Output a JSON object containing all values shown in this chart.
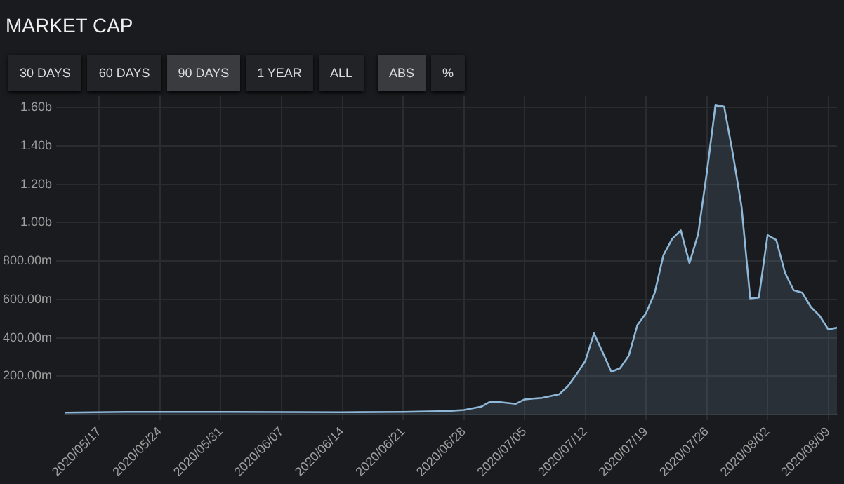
{
  "chart_data": {
    "type": "area",
    "title": "MARKET CAP",
    "annotations": [
      "30 DAYS",
      "60 DAYS",
      "90 DAYS",
      "1 YEAR",
      "ALL",
      "ABS",
      "%"
    ],
    "x": [
      "2020-05-13",
      "2020-05-20",
      "2020-06-01",
      "2020-06-14",
      "2020-06-21",
      "2020-06-26",
      "2020-06-28",
      "2020-06-30",
      "2020-07-01",
      "2020-07-02",
      "2020-07-04",
      "2020-07-05",
      "2020-07-06",
      "2020-07-07",
      "2020-07-09",
      "2020-07-10",
      "2020-07-11",
      "2020-07-12",
      "2020-07-13",
      "2020-07-14",
      "2020-07-15",
      "2020-07-16",
      "2020-07-17",
      "2020-07-18",
      "2020-07-19",
      "2020-07-20",
      "2020-07-21",
      "2020-07-22",
      "2020-07-23",
      "2020-07-24",
      "2020-07-25",
      "2020-07-26",
      "2020-07-27",
      "2020-07-28",
      "2020-07-29",
      "2020-07-30",
      "2020-07-31",
      "2020-08-01",
      "2020-08-02",
      "2020-08-03",
      "2020-08-04",
      "2020-08-05",
      "2020-08-06",
      "2020-08-07",
      "2020-08-08",
      "2020-08-09",
      "2020-08-10"
    ],
    "series": [
      {
        "color": "#8fb8d8",
        "values": [
          10000000,
          14000000,
          14000000,
          12000000,
          14000000,
          18000000,
          24000000,
          41000000,
          66000000,
          66000000,
          56000000,
          79000000,
          83000000,
          87000000,
          106000000,
          148000000,
          211000000,
          279000000,
          423000000,
          324000000,
          223000000,
          241000000,
          306000000,
          466000000,
          528000000,
          635000000,
          830000000,
          915000000,
          960000000,
          790000000,
          940000000,
          1260000000,
          1614000000,
          1604000000,
          1359000000,
          1085000000,
          605000000,
          610000000,
          935000000,
          910000000,
          740000000,
          648000000,
          635000000,
          560000000,
          515000000,
          443000000,
          453000000
        ]
      }
    ],
    "xlim": [
      "2020-05-13",
      "2020-08-10"
    ],
    "xticks": [
      {
        "value": "2020-05-17",
        "label": "2020/05/17"
      },
      {
        "value": "2020-05-24",
        "label": "2020/05/24"
      },
      {
        "value": "2020-05-31",
        "label": "2020/05/31"
      },
      {
        "value": "2020-06-07",
        "label": "2020/06/07"
      },
      {
        "value": "2020-06-14",
        "label": "2020/06/14"
      },
      {
        "value": "2020-06-21",
        "label": "2020/06/21"
      },
      {
        "value": "2020-06-28",
        "label": "2020/06/28"
      },
      {
        "value": "2020-07-05",
        "label": "2020/07/05"
      },
      {
        "value": "2020-07-12",
        "label": "2020/07/12"
      },
      {
        "value": "2020-07-19",
        "label": "2020/07/19"
      },
      {
        "value": "2020-07-26",
        "label": "2020/07/26"
      },
      {
        "value": "2020-08-02",
        "label": "2020/08/02"
      },
      {
        "value": "2020-08-09",
        "label": "2020/08/09"
      }
    ],
    "ylim": [
      0,
      1660000000
    ],
    "yticks": [
      {
        "value": 200000000,
        "label": "200.00m"
      },
      {
        "value": 400000000,
        "label": "400.00m"
      },
      {
        "value": 600000000,
        "label": "600.00m"
      },
      {
        "value": 800000000,
        "label": "800.00m"
      },
      {
        "value": 1000000000,
        "label": "1.00b"
      },
      {
        "value": 1200000000,
        "label": "1.20b"
      },
      {
        "value": 1400000000,
        "label": "1.40b"
      },
      {
        "value": 1600000000,
        "label": "1.60b"
      }
    ],
    "grid": true,
    "marker": "none",
    "line_style": "solid"
  }
}
